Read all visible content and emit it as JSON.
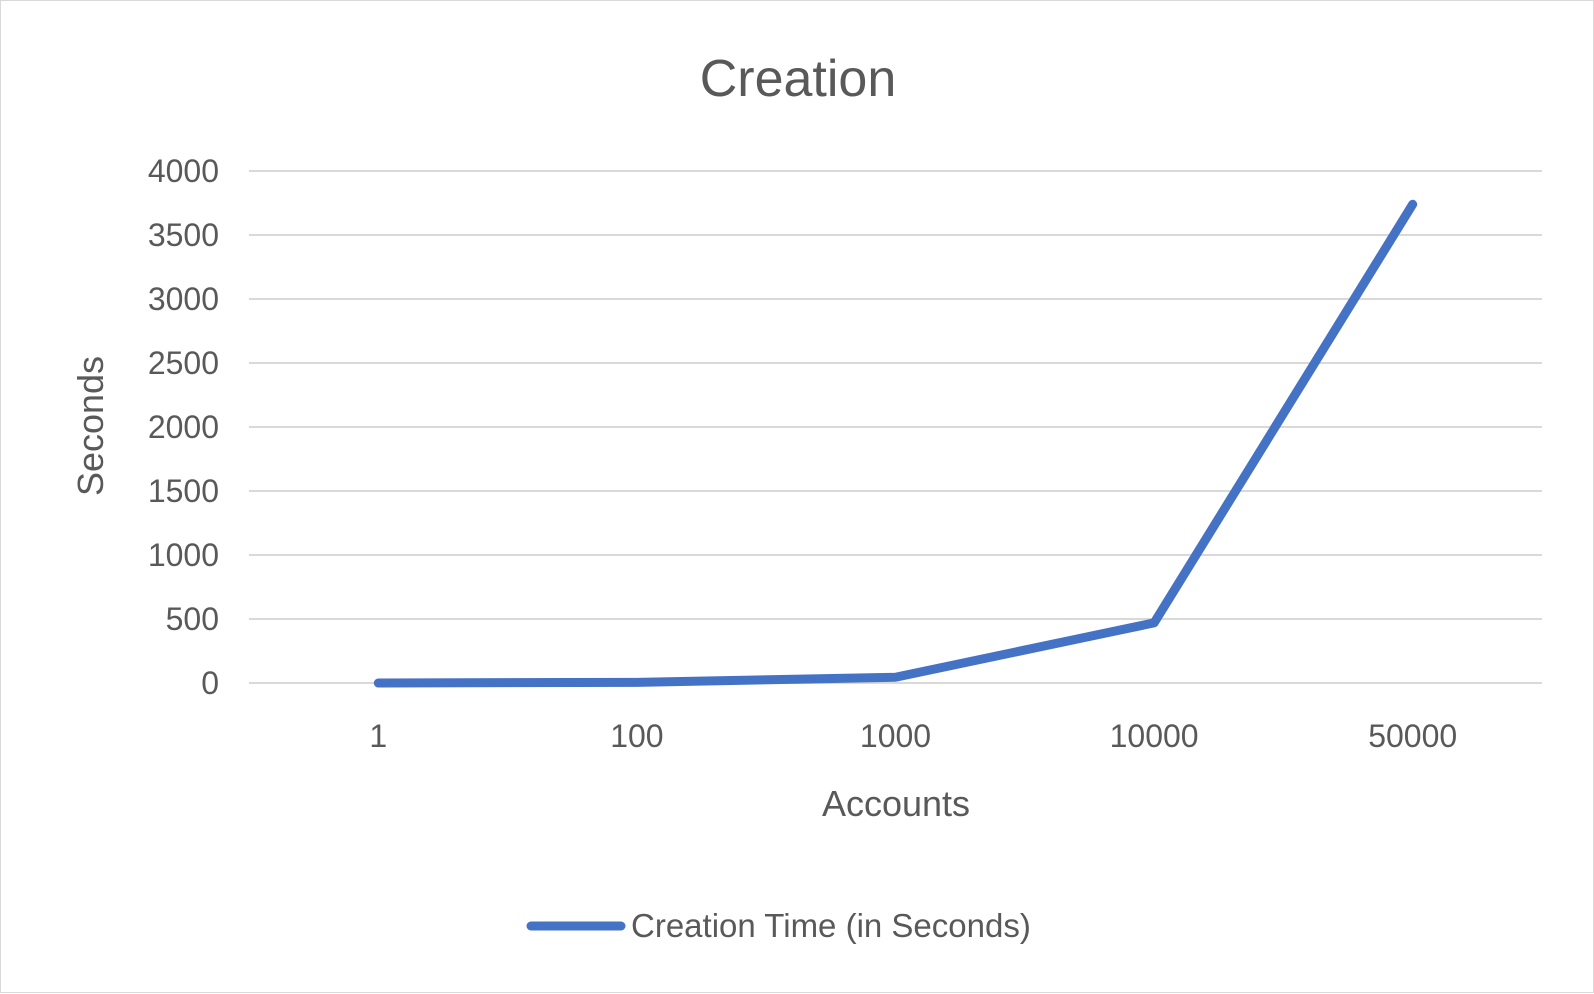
{
  "chart_data": {
    "type": "line",
    "title": "Creation",
    "xlabel": "Accounts",
    "ylabel": "Seconds",
    "categories": [
      "1",
      "100",
      "1000",
      "10000",
      "50000"
    ],
    "series": [
      {
        "name": "Creation Time (in Seconds)",
        "values": [
          0,
          5,
          45,
          470,
          3740
        ],
        "color": "#4472C4"
      }
    ],
    "ylim": [
      0,
      4000
    ],
    "yticks": [
      "0",
      "500",
      "1000",
      "1500",
      "2000",
      "2500",
      "3000",
      "3500",
      "4000"
    ],
    "grid": true,
    "legend_position": "bottom"
  }
}
